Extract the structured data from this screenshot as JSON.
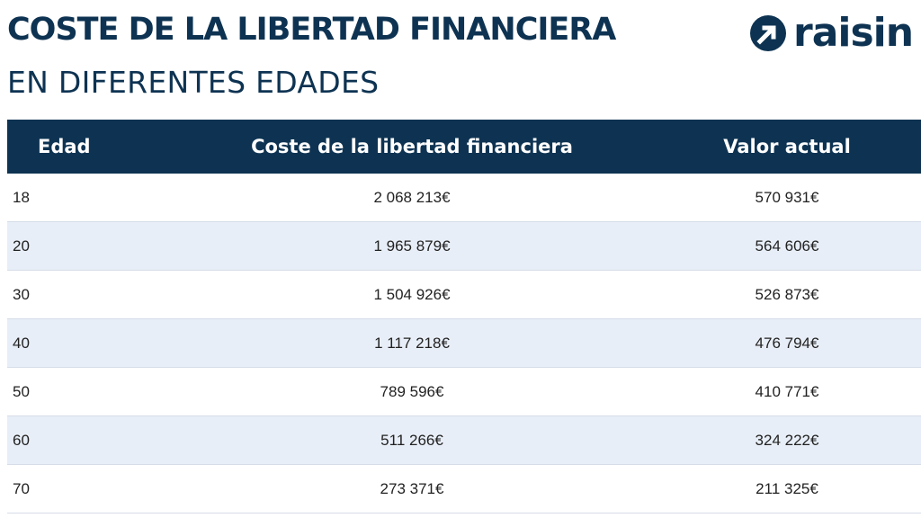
{
  "header": {
    "title": "COSTE DE LA LIBERTAD FINANCIERA",
    "subtitle": "EN DIFERENTES EDADES",
    "logo_text": "raisin"
  },
  "colors": {
    "brand_navy": "#0e3352",
    "row_alt": "#e8eef7"
  },
  "table": {
    "columns": [
      "Edad",
      "Coste de la libertad financiera",
      "Valor actual"
    ],
    "rows": [
      [
        "18",
        "2 068 213€",
        "570 931€"
      ],
      [
        "20",
        "1 965 879€",
        "564 606€"
      ],
      [
        "30",
        "1 504 926€",
        "526 873€"
      ],
      [
        "40",
        "1 117 218€",
        "476 794€"
      ],
      [
        "50",
        "789 596€",
        "410 771€"
      ],
      [
        "60",
        "511 266€",
        "324 222€"
      ],
      [
        "70",
        "273 371€",
        "211 325€"
      ]
    ]
  }
}
